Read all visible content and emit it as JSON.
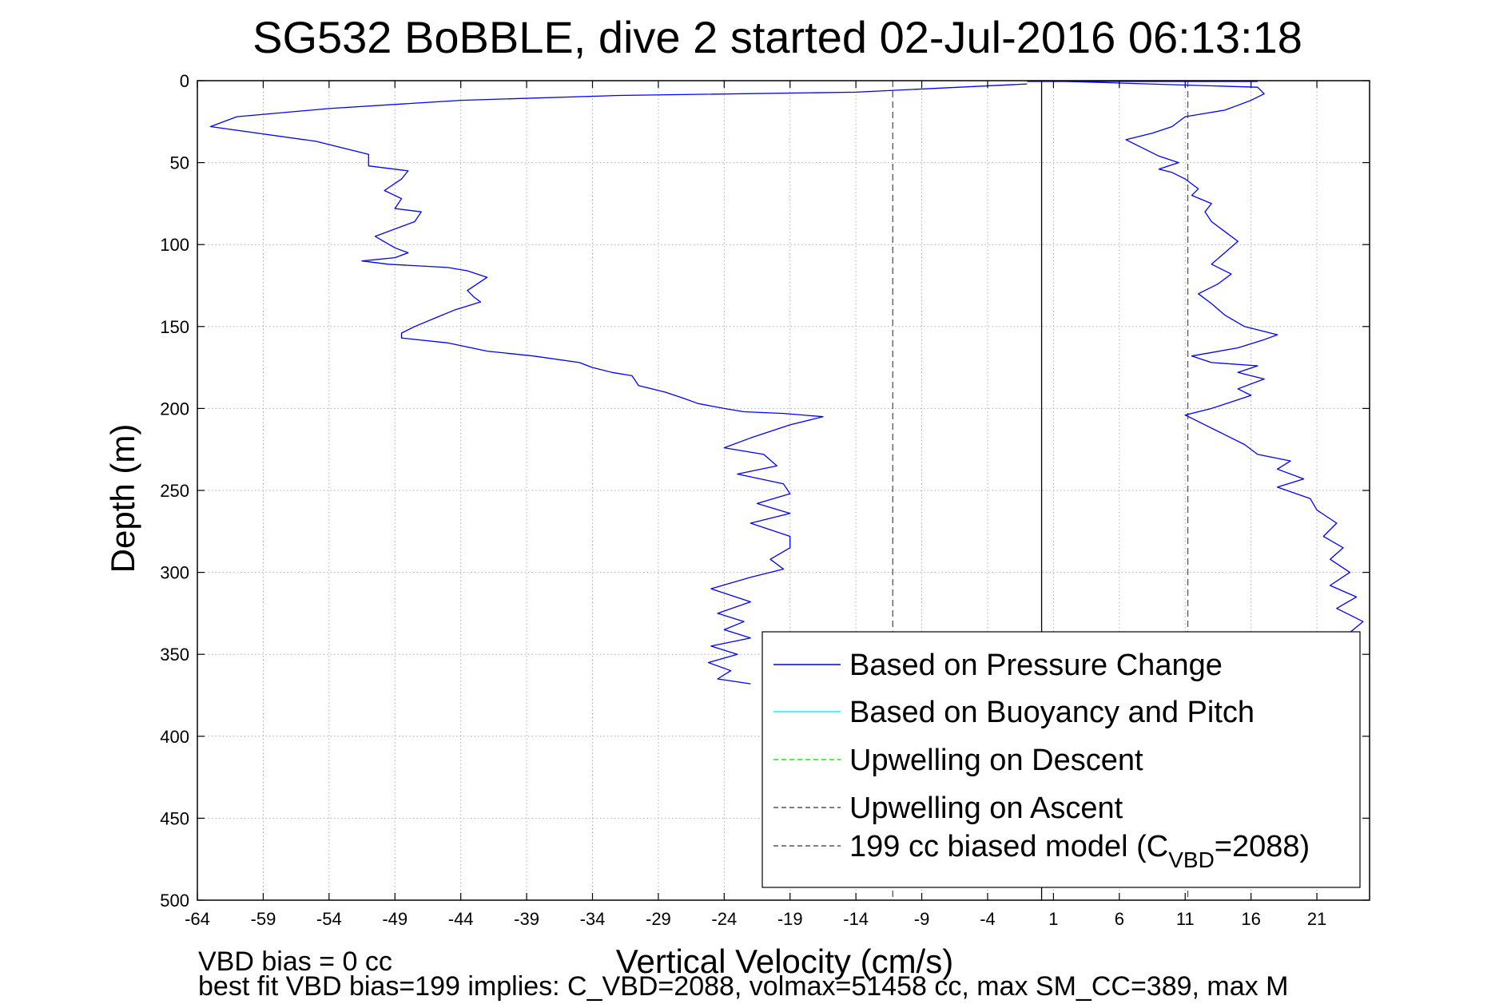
{
  "chart_data": {
    "type": "line",
    "title": "SG532 BoBBLE, dive 2 started 02-Jul-2016 06:13:18",
    "xlabel": "Vertical Velocity (cm/s)",
    "ylabel": "Depth (m)",
    "xlim": [
      -64,
      25
    ],
    "ylim": [
      0,
      500
    ],
    "y_reversed": true,
    "grid": true,
    "legend_position": "bottom-right",
    "x_ticks": [
      -64,
      -59,
      -54,
      -49,
      -44,
      -39,
      -34,
      -29,
      -24,
      -19,
      -14,
      -9,
      -4,
      1,
      6,
      11,
      16,
      21
    ],
    "y_ticks": [
      0,
      50,
      100,
      150,
      200,
      250,
      300,
      350,
      400,
      450,
      500
    ],
    "legend": [
      {
        "label": "Based on Pressure Change",
        "color": "#0000ff",
        "style": "solid"
      },
      {
        "label": "Based on Buoyancy and Pitch",
        "color": "#00ffff",
        "style": "solid"
      },
      {
        "label": "Upwelling on Descent",
        "color": "#00ff00",
        "style": "dashed"
      },
      {
        "label": "Upwelling on Ascent",
        "color": "#555555",
        "style": "dashed"
      },
      {
        "label": "199 cc biased model (C",
        "sub": "VBD",
        "suffix": "=2088)",
        "color": "#555555",
        "style": "dashed"
      }
    ],
    "reference_lines": [
      {
        "x": -11.2,
        "style": "dashed",
        "color": "#555555"
      },
      {
        "x": 0.1,
        "style": "solid",
        "color": "#000000"
      },
      {
        "x": 11.2,
        "style": "dashed",
        "color": "#555555"
      }
    ],
    "series": [
      {
        "name": "Based on Pressure Change (descent)",
        "color": "#0000ff",
        "x": [
          -1,
          -14,
          -32,
          -44,
          -54,
          -61,
          -63,
          -55,
          -51,
          -51,
          -48,
          -48.5,
          -49.8,
          -48.5,
          -49,
          -47,
          -47.5,
          -50.5,
          -49,
          -48,
          -49,
          -51.5,
          -49.5,
          -45,
          -43.5,
          -42,
          -43.5,
          -43,
          -42.5,
          -44.5,
          -46,
          -47.5,
          -48.5,
          -48.5,
          -45,
          -42,
          -38.5,
          -35,
          -34,
          -32.5,
          -31,
          -30.5,
          -28.5,
          -27,
          -26,
          -24,
          -22.5,
          -19.5,
          -16.5,
          -19,
          -22,
          -24,
          -21,
          -20,
          -23,
          -19.5,
          -19,
          -21.5,
          -19,
          -22,
          -19,
          -19,
          -20.5,
          -19.5,
          -22,
          -25,
          -22,
          -24.5,
          -22.5,
          -24,
          -22,
          -25,
          -23,
          -25.2,
          -23.5,
          -24.5,
          -22
        ],
        "y": [
          2,
          7,
          9,
          12,
          17,
          22,
          28,
          37,
          45,
          52,
          55,
          60,
          67,
          72,
          78,
          80,
          86,
          95,
          102,
          105,
          108,
          110,
          112,
          114,
          116,
          120,
          128,
          132,
          135,
          140,
          145,
          150,
          154,
          157,
          160,
          165,
          168,
          172,
          175,
          178,
          180,
          186,
          190,
          194,
          197,
          200,
          202,
          203,
          205,
          210,
          218,
          224,
          228,
          235,
          240,
          246,
          252,
          258,
          264,
          270,
          278,
          285,
          292,
          298,
          303,
          310,
          318,
          325,
          330,
          335,
          340,
          345,
          350,
          355,
          360,
          365,
          368
        ]
      },
      {
        "name": "Based on Pressure Change (ascent)",
        "color": "#0000ff",
        "x": [
          21.5,
          23,
          24.5,
          22.5,
          24,
          22,
          23.5,
          22,
          23,
          21.5,
          22.5,
          21,
          20.5,
          18,
          20,
          18,
          19,
          16.5,
          15.5,
          14,
          12.5,
          11,
          13,
          14.5,
          16,
          15,
          17,
          15,
          16.5,
          13,
          11.5,
          15,
          17,
          18,
          15.5,
          14,
          13,
          12,
          13.5,
          14.5,
          13,
          14,
          15,
          14,
          13,
          12.5,
          13,
          11.5,
          12,
          11,
          10,
          9,
          10.5,
          9,
          8,
          6.5,
          8.5,
          10,
          11,
          12.5,
          14,
          15,
          16,
          17,
          16.5,
          0
        ],
        "y": [
          345,
          340,
          330,
          322,
          315,
          308,
          300,
          292,
          285,
          278,
          270,
          262,
          255,
          248,
          243,
          237,
          232,
          228,
          222,
          216,
          210,
          204,
          200,
          196,
          192,
          188,
          182,
          178,
          174,
          172,
          168,
          163,
          158,
          155,
          150,
          143,
          136,
          130,
          124,
          118,
          112,
          105,
          98,
          92,
          86,
          80,
          75,
          70,
          66,
          60,
          56,
          54,
          50,
          46,
          42,
          36,
          32,
          28,
          22,
          20,
          18,
          15,
          12,
          8,
          4,
          0
        ]
      }
    ],
    "footnotes": [
      "VBD bias = 0 cc",
      "best fit VBD bias=199 implies: C_VBD=2088, volmax=51458 cc, max SM_CC=389, max M"
    ]
  }
}
